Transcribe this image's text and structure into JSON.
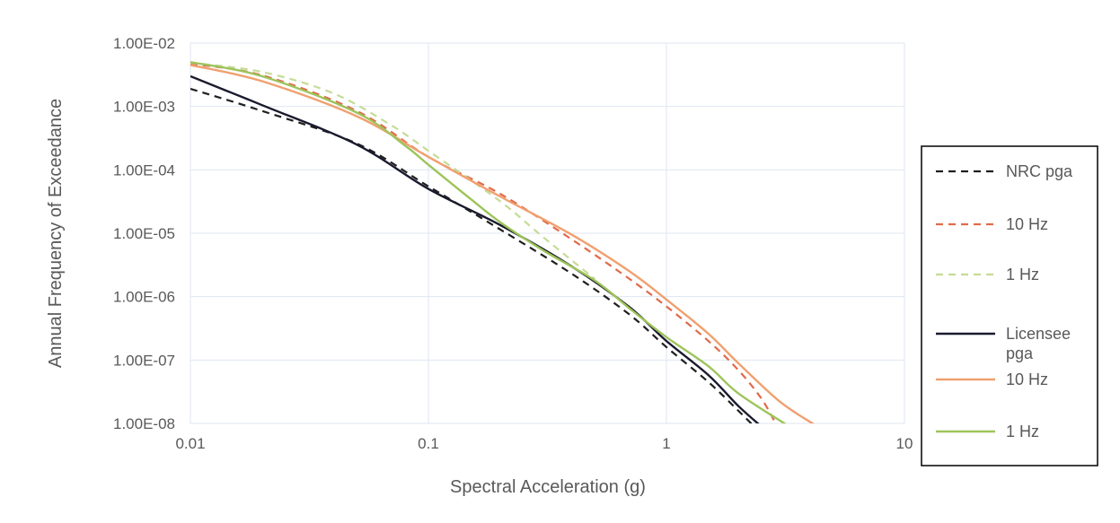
{
  "chart_data": {
    "type": "line",
    "title": "",
    "xlabel": "Spectral Acceleration (g)",
    "ylabel": "Annual Frequency of Exceedance",
    "x_scale": "log",
    "y_scale": "log",
    "xlim": [
      0.01,
      10
    ],
    "ylim": [
      1e-08,
      0.01
    ],
    "x_ticks": [
      {
        "value": 0.01,
        "label": "0.01"
      },
      {
        "value": 0.1,
        "label": "0.1"
      },
      {
        "value": 1,
        "label": "1"
      },
      {
        "value": 10,
        "label": "10"
      }
    ],
    "y_ticks": [
      {
        "value": 0.01,
        "label": "1.00E-02"
      },
      {
        "value": 0.001,
        "label": "1.00E-03"
      },
      {
        "value": 0.0001,
        "label": "1.00E-04"
      },
      {
        "value": 1e-05,
        "label": "1.00E-05"
      },
      {
        "value": 1e-06,
        "label": "1.00E-06"
      },
      {
        "value": 1e-07,
        "label": "1.00E-07"
      },
      {
        "value": 1e-08,
        "label": "1.00E-08"
      }
    ],
    "grid": true,
    "legend_position": "right",
    "series": [
      {
        "name": "NRC pga",
        "color": "#1f1f1f",
        "dash": "dashed",
        "points": [
          [
            0.01,
            0.0019
          ],
          [
            0.02,
            0.00085
          ],
          [
            0.05,
            0.00026
          ],
          [
            0.1,
            5.5e-05
          ],
          [
            0.2,
            1.15e-05
          ],
          [
            0.4,
            2.3e-06
          ],
          [
            0.7,
            5.2e-07
          ],
          [
            1.0,
            1.6e-07
          ],
          [
            1.5,
            4.5e-08
          ],
          [
            2.0,
            1.6e-08
          ],
          [
            2.3,
            9.5e-09
          ]
        ]
      },
      {
        "name": "10 Hz",
        "color": "#e06a4a",
        "dash": "dashed",
        "points": [
          [
            0.01,
            0.0047
          ],
          [
            0.02,
            0.0031
          ],
          [
            0.05,
            0.00085
          ],
          [
            0.1,
            0.00016
          ],
          [
            0.2,
            4.2e-05
          ],
          [
            0.4,
            8e-06
          ],
          [
            0.7,
            1.9e-06
          ],
          [
            1.0,
            7e-07
          ],
          [
            1.5,
            2e-07
          ],
          [
            2.0,
            7e-08
          ],
          [
            2.5,
            2.5e-08
          ],
          [
            2.9,
            9.5e-09
          ]
        ]
      },
      {
        "name": "1 Hz",
        "color": "#c5dc96",
        "dash": "dashed",
        "points": [
          [
            0.01,
            0.0049
          ],
          [
            0.02,
            0.0035
          ],
          [
            0.04,
            0.0016
          ],
          [
            0.07,
            0.0005
          ],
          [
            0.1,
            0.0002
          ],
          [
            0.2,
            3.2e-05
          ],
          [
            0.3,
            9e-06
          ],
          [
            0.5,
            1.9e-06
          ]
        ]
      },
      {
        "name": "Licensee\npga",
        "color": "#1a1a2e",
        "dash": "solid",
        "points": [
          [
            0.01,
            0.003
          ],
          [
            0.02,
            0.00105
          ],
          [
            0.05,
            0.00025
          ],
          [
            0.1,
            5e-05
          ],
          [
            0.2,
            1.35e-05
          ],
          [
            0.4,
            3e-06
          ],
          [
            0.7,
            6.8e-07
          ],
          [
            1.0,
            2e-07
          ],
          [
            1.5,
            5.8e-08
          ],
          [
            2.0,
            1.9e-08
          ],
          [
            2.5,
            9e-09
          ]
        ]
      },
      {
        "name": "10 Hz",
        "color": "#f0a070",
        "dash": "solid",
        "points": [
          [
            0.01,
            0.0045
          ],
          [
            0.02,
            0.0025
          ],
          [
            0.05,
            0.0007
          ],
          [
            0.1,
            0.00016
          ],
          [
            0.2,
            3.8e-05
          ],
          [
            0.4,
            9.5e-06
          ],
          [
            0.7,
            2.5e-06
          ],
          [
            1.0,
            9e-07
          ],
          [
            1.5,
            2.6e-07
          ],
          [
            2.0,
            9e-08
          ],
          [
            3.0,
            2.2e-08
          ],
          [
            4.2,
            9.5e-09
          ]
        ]
      },
      {
        "name": "1 Hz",
        "color": "#9dc45a",
        "dash": "solid",
        "points": [
          [
            0.01,
            0.005
          ],
          [
            0.02,
            0.003
          ],
          [
            0.05,
            0.0008
          ],
          [
            0.08,
            0.00024
          ],
          [
            0.1,
            0.00012
          ],
          [
            0.15,
            3.5e-05
          ],
          [
            0.2,
            1.5e-05
          ],
          [
            0.3,
            5.5e-06
          ],
          [
            0.5,
            1.8e-06
          ],
          [
            0.7,
            6.5e-07
          ],
          [
            1.0,
            2.3e-07
          ],
          [
            1.5,
            8e-08
          ],
          [
            2.0,
            3e-08
          ],
          [
            3.2,
            9.5e-09
          ]
        ]
      }
    ]
  }
}
